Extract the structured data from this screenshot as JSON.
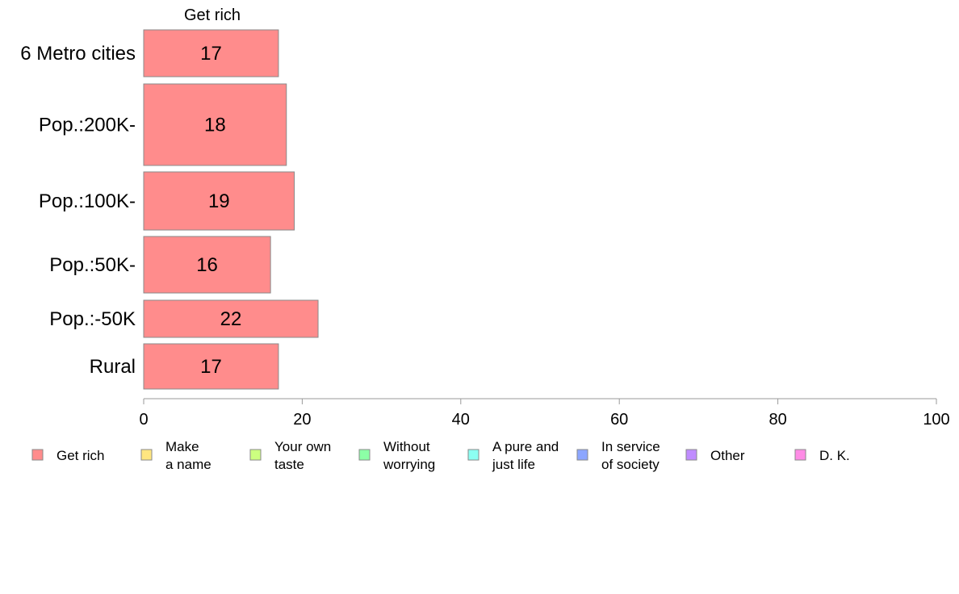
{
  "chart_data": {
    "type": "bar",
    "orientation": "horizontal",
    "stacked": true,
    "panel_title": "Get rich",
    "categories": [
      "6 Metro cities",
      "Pop.:200K-",
      "Pop.:100K-",
      "Pop.:50K-",
      "Pop.:-50K",
      "Rural"
    ],
    "series": [
      {
        "name": "Get rich",
        "color": "#ff8c8c",
        "values": [
          17,
          18,
          19,
          16,
          22,
          17
        ]
      }
    ],
    "xlim": [
      0,
      100
    ],
    "xticks": [
      "0",
      "20",
      "40",
      "60",
      "80",
      "100"
    ],
    "grid": false,
    "legend": {
      "placement": "bottom",
      "items": [
        {
          "label": "Get rich",
          "color": "#ff8c8c"
        },
        {
          "label": "Make\na name",
          "color": "#ffe680"
        },
        {
          "label": "Your own\ntaste",
          "color": "#ccff80"
        },
        {
          "label": "Without\nworrying",
          "color": "#8cffa6"
        },
        {
          "label": "A pure and\njust life",
          "color": "#8cfff2"
        },
        {
          "label": "In service\nof society",
          "color": "#8ca6ff"
        },
        {
          "label": "Other",
          "color": "#c08cff"
        },
        {
          "label": "D. K.",
          "color": "#ff8ce6"
        }
      ]
    }
  }
}
